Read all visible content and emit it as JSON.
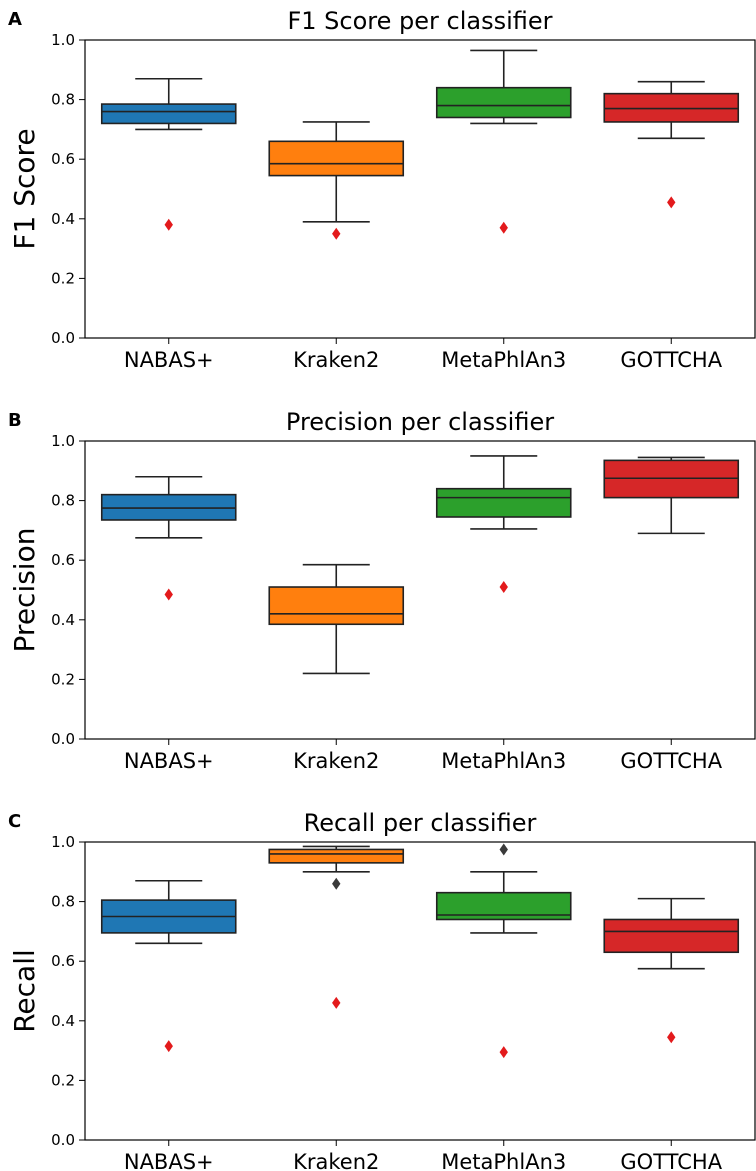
{
  "chart_data": [
    {
      "type": "box",
      "panel_label": "A",
      "title": "F1 Score per classifier",
      "xlabel": "",
      "ylabel": "F1 Score",
      "ylim": [
        0,
        1.0
      ],
      "yticks": [
        "0.0",
        "0.2",
        "0.4",
        "0.6",
        "0.8",
        "1.0"
      ],
      "categories": [
        "NABAS+",
        "Kraken2",
        "MetaPhlAn3",
        "GOTTCHA"
      ],
      "boxes": [
        {
          "whisker_low": 0.7,
          "q1": 0.72,
          "median": 0.76,
          "q3": 0.785,
          "whisker_high": 0.87,
          "outliers": []
        },
        {
          "whisker_low": 0.39,
          "q1": 0.545,
          "median": 0.585,
          "q3": 0.66,
          "whisker_high": 0.725,
          "outliers": []
        },
        {
          "whisker_low": 0.72,
          "q1": 0.74,
          "median": 0.78,
          "q3": 0.84,
          "whisker_high": 0.965,
          "outliers": []
        },
        {
          "whisker_low": 0.67,
          "q1": 0.725,
          "median": 0.77,
          "q3": 0.82,
          "whisker_high": 0.86,
          "outliers": []
        }
      ],
      "highlight_points": [
        0.38,
        0.35,
        0.37,
        0.455
      ]
    },
    {
      "type": "box",
      "panel_label": "B",
      "title": "Precision per classifier",
      "xlabel": "",
      "ylabel": "Precision",
      "ylim": [
        0,
        1.0
      ],
      "yticks": [
        "0.0",
        "0.2",
        "0.4",
        "0.6",
        "0.8",
        "1.0"
      ],
      "categories": [
        "NABAS+",
        "Kraken2",
        "MetaPhlAn3",
        "GOTTCHA"
      ],
      "boxes": [
        {
          "whisker_low": 0.675,
          "q1": 0.735,
          "median": 0.775,
          "q3": 0.82,
          "whisker_high": 0.88,
          "outliers": []
        },
        {
          "whisker_low": 0.22,
          "q1": 0.385,
          "median": 0.42,
          "q3": 0.51,
          "whisker_high": 0.585,
          "outliers": []
        },
        {
          "whisker_low": 0.705,
          "q1": 0.745,
          "median": 0.81,
          "q3": 0.84,
          "whisker_high": 0.95,
          "outliers": []
        },
        {
          "whisker_low": 0.69,
          "q1": 0.81,
          "median": 0.875,
          "q3": 0.935,
          "whisker_high": 0.945,
          "outliers": []
        }
      ],
      "highlight_points": [
        0.485,
        null,
        0.51,
        null
      ]
    },
    {
      "type": "box",
      "panel_label": "C",
      "title": "Recall per classifier",
      "xlabel": "",
      "ylabel": "Recall",
      "ylim": [
        0,
        1.0
      ],
      "yticks": [
        "0.0",
        "0.2",
        "0.4",
        "0.6",
        "0.8",
        "1.0"
      ],
      "categories": [
        "NABAS+",
        "Kraken2",
        "MetaPhlAn3",
        "GOTTCHA"
      ],
      "boxes": [
        {
          "whisker_low": 0.66,
          "q1": 0.695,
          "median": 0.75,
          "q3": 0.805,
          "whisker_high": 0.87,
          "outliers": []
        },
        {
          "whisker_low": 0.9,
          "q1": 0.93,
          "median": 0.96,
          "q3": 0.975,
          "whisker_high": 0.985,
          "outliers": [
            0.86
          ]
        },
        {
          "whisker_low": 0.695,
          "q1": 0.74,
          "median": 0.755,
          "q3": 0.83,
          "whisker_high": 0.9,
          "outliers": [
            0.975
          ]
        },
        {
          "whisker_low": 0.575,
          "q1": 0.63,
          "median": 0.7,
          "q3": 0.74,
          "whisker_high": 0.81,
          "outliers": []
        }
      ],
      "highlight_points": [
        0.315,
        0.46,
        0.295,
        0.345
      ]
    }
  ],
  "colors": {
    "series": [
      "#1f77b4",
      "#ff7f0e",
      "#2ca02c",
      "#d62728"
    ],
    "highlight": "#e31a1c",
    "outlier": "#3a3a3a",
    "line": "#222222"
  }
}
